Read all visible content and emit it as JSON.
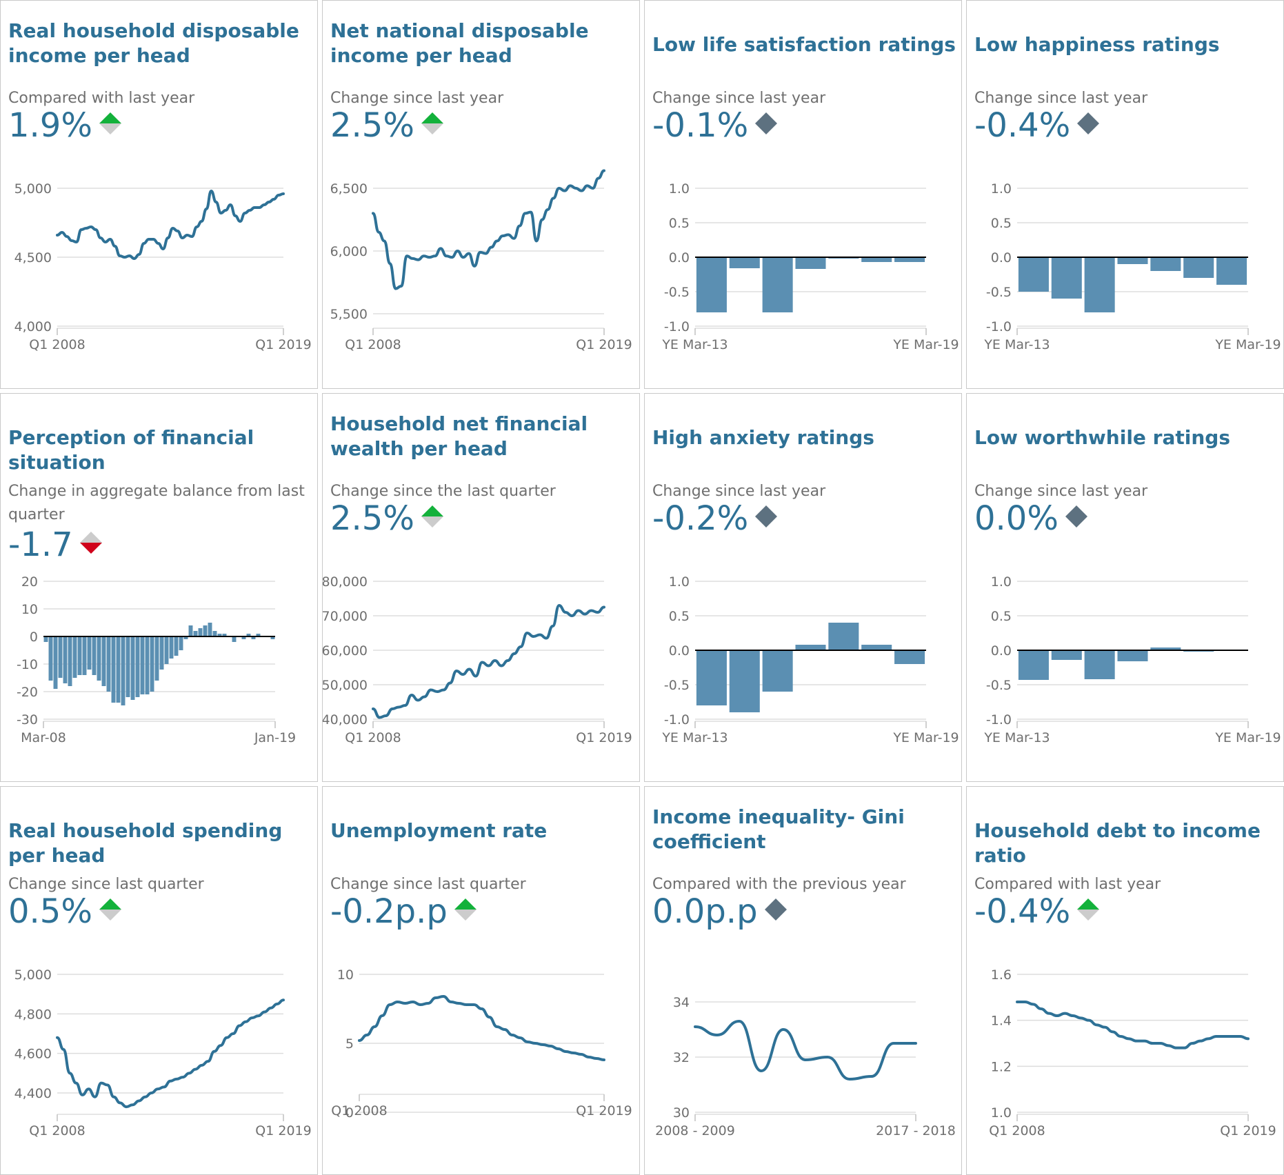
{
  "colors": {
    "accent": "#2e7196",
    "bar": "#5b8fb2",
    "up": "#13b13b",
    "down": "#d0021b",
    "neutral": "#5d7180",
    "grey": "#cccccc"
  },
  "cards": [
    {
      "title": "Real household disposable income per head",
      "subtitle": "Compared with last year",
      "value": "1.9%",
      "direction": "up",
      "chart_data": {
        "type": "line",
        "x_labels": [
          "Q1 2008",
          "Q1 2019"
        ],
        "y_ticks": [
          "5,000",
          "4,500",
          "4,000"
        ],
        "ylim": [
          4000,
          5000
        ],
        "values": [
          4660,
          4680,
          4650,
          4620,
          4610,
          4700,
          4710,
          4720,
          4700,
          4640,
          4610,
          4630,
          4580,
          4510,
          4500,
          4510,
          4490,
          4520,
          4600,
          4630,
          4630,
          4600,
          4560,
          4640,
          4710,
          4690,
          4640,
          4660,
          4650,
          4720,
          4760,
          4850,
          4980,
          4900,
          4820,
          4840,
          4880,
          4800,
          4760,
          4820,
          4840,
          4860,
          4860,
          4880,
          4900,
          4920,
          4950,
          4960
        ]
      }
    },
    {
      "title": "Net national disposable income per head",
      "subtitle": "Change since last year",
      "value": "2.5%",
      "direction": "up",
      "chart_data": {
        "type": "line",
        "x_labels": [
          "Q1 2008",
          "Q1 2019"
        ],
        "y_ticks": [
          "6,500",
          "6,000",
          "5,500"
        ],
        "ylim": [
          5500,
          6500
        ],
        "values": [
          6300,
          6150,
          6080,
          5900,
          5700,
          5720,
          5960,
          5940,
          5930,
          5960,
          5950,
          5960,
          6020,
          5960,
          5950,
          6000,
          5950,
          5980,
          5880,
          5990,
          5980,
          6030,
          6080,
          6120,
          6130,
          6100,
          6200,
          6300,
          6310,
          6080,
          6250,
          6330,
          6420,
          6500,
          6480,
          6520,
          6500,
          6480,
          6520,
          6500,
          6580,
          6640
        ]
      }
    },
    {
      "title": "Low life satisfaction ratings",
      "subtitle": "Change since last year",
      "value": "-0.1%",
      "direction": "neutral",
      "chart_data": {
        "type": "bar",
        "x_labels": [
          "YE Mar-13",
          "YE Mar-19"
        ],
        "y_ticks": [
          "1.0",
          "0.5",
          "0.0",
          "-0.5",
          "-1.0"
        ],
        "ylim": [
          -1,
          1
        ],
        "values": [
          -0.8,
          -0.16,
          -0.8,
          -0.17,
          -0.02,
          -0.07,
          -0.07
        ]
      }
    },
    {
      "title": "Low happiness ratings",
      "subtitle": "Change since last year",
      "value": "-0.4%",
      "direction": "neutral",
      "chart_data": {
        "type": "bar",
        "x_labels": [
          "YE Mar-13",
          "YE Mar-19"
        ],
        "y_ticks": [
          "1.0",
          "0.5",
          "0.0",
          "-0.5",
          "-1.0"
        ],
        "ylim": [
          -1,
          1
        ],
        "values": [
          -0.5,
          -0.6,
          -0.8,
          -0.1,
          -0.2,
          -0.3,
          -0.4
        ]
      }
    },
    {
      "title": "Perception of financial situation",
      "subtitle": "Change in aggregate balance from last quarter",
      "value": "-1.7",
      "direction": "down",
      "chart_data": {
        "type": "bar",
        "x_labels": [
          "Mar-08",
          "Jan-19"
        ],
        "y_ticks": [
          "20",
          "10",
          "0",
          "-10",
          "-20",
          "-30"
        ],
        "ylim": [
          -30,
          20
        ],
        "values": [
          -2,
          -16,
          -19,
          -15,
          -17,
          -18,
          -15,
          -14,
          -14,
          -12,
          -14,
          -16,
          -18,
          -20,
          -24,
          -24,
          -25,
          -22,
          -23,
          -22,
          -21,
          -21,
          -20,
          -16,
          -12,
          -10,
          -8,
          -7,
          -5,
          -1,
          4,
          2,
          3,
          4,
          5,
          2,
          1,
          1,
          0,
          -2,
          0,
          -1,
          1,
          -1,
          1,
          0,
          0,
          -1
        ]
      }
    },
    {
      "title": "Household net financial wealth per head",
      "subtitle": "Change since the last quarter",
      "value": "2.5%",
      "direction": "up",
      "chart_data": {
        "type": "line",
        "x_labels": [
          "Q1 2008",
          "Q1 2019"
        ],
        "y_ticks": [
          "80,000",
          "70,000",
          "60,000",
          "50,000",
          "40,000"
        ],
        "ylim": [
          40000,
          80000
        ],
        "values": [
          43000,
          40500,
          41000,
          43000,
          43500,
          44000,
          47000,
          45500,
          46500,
          48500,
          48000,
          48500,
          50500,
          54000,
          53000,
          54500,
          52500,
          56500,
          55500,
          57000,
          55500,
          57000,
          59000,
          61000,
          65000,
          64000,
          64500,
          63500,
          67000,
          73000,
          71000,
          70000,
          71500,
          70500,
          71500,
          71000,
          72500
        ]
      }
    },
    {
      "title": "High anxiety ratings",
      "subtitle": "Change since last year",
      "value": "-0.2%",
      "direction": "neutral",
      "chart_data": {
        "type": "bar",
        "x_labels": [
          "YE Mar-13",
          "YE Mar-19"
        ],
        "y_ticks": [
          "1.0",
          "0.5",
          "0.0",
          "-0.5",
          "-1.0"
        ],
        "ylim": [
          -1,
          1
        ],
        "values": [
          -0.8,
          -0.9,
          -0.6,
          0.08,
          0.4,
          0.08,
          -0.2
        ]
      }
    },
    {
      "title": "Low worthwhile ratings",
      "subtitle": "Change since last year",
      "value": "0.0%",
      "direction": "neutral",
      "chart_data": {
        "type": "bar",
        "x_labels": [
          "YE Mar-13",
          "YE Mar-19"
        ],
        "y_ticks": [
          "1.0",
          "0.5",
          "0.0",
          "-0.5",
          "-1.0"
        ],
        "ylim": [
          -1,
          1
        ],
        "values": [
          -0.43,
          -0.14,
          -0.42,
          -0.16,
          0.04,
          -0.02,
          0.01
        ]
      }
    },
    {
      "title": "Real household spending per head",
      "subtitle": "Change since last quarter",
      "value": "0.5%",
      "direction": "up",
      "chart_data": {
        "type": "line",
        "x_labels": [
          "Q1 2008",
          "Q1 2019"
        ],
        "y_ticks": [
          "5,000",
          "4,800",
          "4,600",
          "4,400"
        ],
        "ylim": [
          4400,
          5000
        ],
        "values": [
          4680,
          4620,
          4500,
          4450,
          4390,
          4420,
          4380,
          4450,
          4440,
          4380,
          4350,
          4330,
          4340,
          4360,
          4380,
          4400,
          4420,
          4430,
          4460,
          4470,
          4480,
          4500,
          4520,
          4540,
          4560,
          4610,
          4640,
          4680,
          4700,
          4740,
          4760,
          4780,
          4790,
          4810,
          4830,
          4850,
          4870
        ]
      }
    },
    {
      "title": "Unemployment rate",
      "subtitle": "Change since last quarter",
      "value": "-0.2p.p",
      "direction": "up",
      "chart_data": {
        "type": "line",
        "x_labels": [
          "Q1 2008",
          "Q1 2019"
        ],
        "y_ticks": [
          "10",
          "5",
          "0"
        ],
        "ylim": [
          0,
          10
        ],
        "values": [
          5.2,
          5.6,
          6.2,
          7.0,
          7.8,
          8.0,
          7.9,
          8.0,
          7.8,
          7.9,
          8.3,
          8.4,
          8.0,
          7.9,
          7.8,
          7.8,
          7.5,
          6.9,
          6.2,
          6.0,
          5.6,
          5.4,
          5.1,
          5.0,
          4.9,
          4.8,
          4.6,
          4.4,
          4.3,
          4.2,
          4.0,
          3.9,
          3.8
        ]
      }
    },
    {
      "title": "Income inequality- Gini coefficient",
      "subtitle": "Compared with the previous year",
      "value": "0.0p.p",
      "direction": "neutral",
      "chart_data": {
        "type": "line",
        "x_labels": [
          "2008 - 2009",
          "2017 - 2018"
        ],
        "y_ticks": [
          "34",
          "32",
          "30"
        ],
        "ylim": [
          30,
          34
        ],
        "values": [
          33.1,
          32.8,
          33.3,
          31.5,
          33.0,
          31.9,
          32.0,
          31.2,
          31.3,
          32.5,
          32.5
        ]
      }
    },
    {
      "title": "Household debt to income ratio",
      "subtitle": "Compared with last year",
      "value": "-0.4%",
      "direction": "up",
      "chart_data": {
        "type": "line",
        "x_labels": [
          "Q1 2008",
          "Q1 2019"
        ],
        "y_ticks": [
          "1.6",
          "1.4",
          "1.2",
          "1.0"
        ],
        "ylim": [
          1.0,
          1.6
        ],
        "values": [
          1.48,
          1.48,
          1.47,
          1.45,
          1.43,
          1.42,
          1.43,
          1.42,
          1.41,
          1.4,
          1.38,
          1.37,
          1.35,
          1.33,
          1.32,
          1.31,
          1.31,
          1.3,
          1.3,
          1.29,
          1.28,
          1.28,
          1.3,
          1.31,
          1.32,
          1.33,
          1.33,
          1.33,
          1.33,
          1.32
        ]
      }
    }
  ]
}
